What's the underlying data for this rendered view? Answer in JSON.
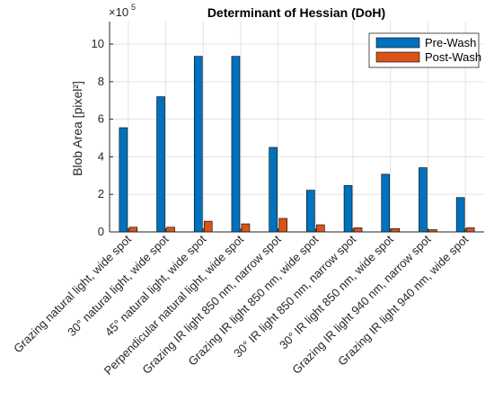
{
  "chart_data": {
    "type": "bar",
    "title": "Determinant of Hessian (DoH)",
    "ylabel": "Blob Area [pixel²]",
    "xlabel": "",
    "y_exponent": "×10",
    "y_exponent_power": "5",
    "ylim": [
      0,
      11.2
    ],
    "yticks": [
      "0",
      "2",
      "4",
      "6",
      "8",
      "10"
    ],
    "grid": true,
    "legend_position": "top-right",
    "categories": [
      "Grazing natural light, wide spot",
      "30° natural light, wide spot",
      "45° natural light, wide spot",
      "Perpendicular natural light, wide spot",
      "Grazing IR light 850 nm, narrow spot",
      "Grazing IR light 850 nm, wide spot",
      "30° IR light 850 nm, narrow spot",
      "30° IR light 850 nm, wide spot",
      "Grazing IR light 940 nm, narrow spot",
      "Grazing IR light 940 nm, wide spot"
    ],
    "series": [
      {
        "name": "Pre-Wash",
        "color": "#0072BD",
        "values": [
          5.55,
          7.2,
          9.35,
          9.35,
          4.5,
          2.22,
          2.47,
          3.07,
          3.42,
          1.83
        ]
      },
      {
        "name": "Post-Wash",
        "color": "#D95319",
        "values": [
          0.25,
          0.25,
          0.57,
          0.43,
          0.72,
          0.38,
          0.22,
          0.18,
          0.12,
          0.22
        ]
      }
    ]
  }
}
